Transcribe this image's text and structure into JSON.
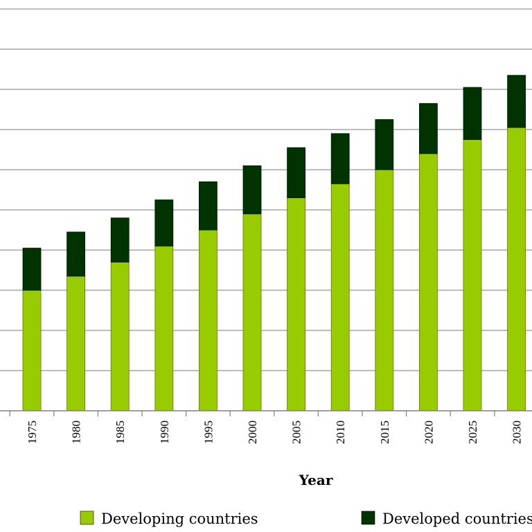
{
  "chart_data": {
    "type": "bar",
    "stacked": true,
    "categories": [
      "1975",
      "1980",
      "1985",
      "1990",
      "1995",
      "2000",
      "2005",
      "2010",
      "2015",
      "2020",
      "2025",
      "2030"
    ],
    "series": [
      {
        "name": "Developing countries",
        "color": "#99cc00",
        "values": [
          3.0,
          3.35,
          3.7,
          4.1,
          4.5,
          4.9,
          5.3,
          5.65,
          6.0,
          6.4,
          6.75,
          7.05
        ]
      },
      {
        "name": "Developed countries",
        "color": "#003300",
        "values": [
          1.05,
          1.1,
          1.1,
          1.15,
          1.2,
          1.2,
          1.25,
          1.25,
          1.25,
          1.25,
          1.3,
          1.3
        ]
      }
    ],
    "xlabel": "Year",
    "ylabel": "",
    "ylim": [
      0,
      10
    ],
    "grid": true,
    "legend": "bottom"
  }
}
